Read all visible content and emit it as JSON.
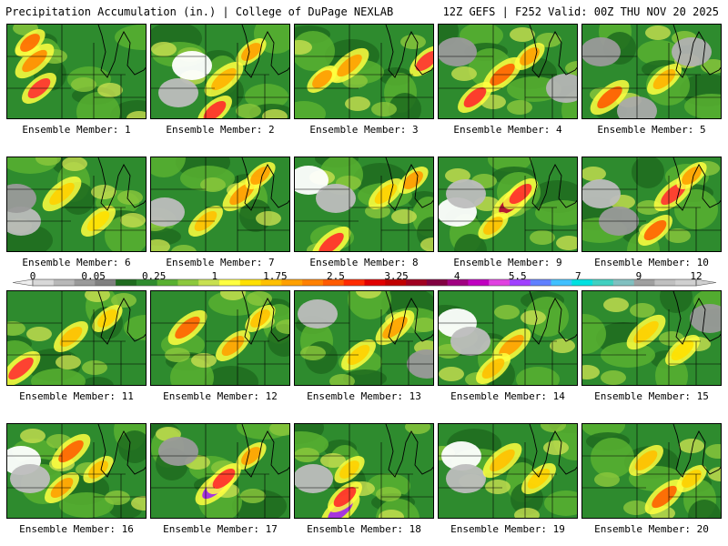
{
  "header": {
    "left": "Precipitation Accumulation (in.) | College of DuPage NEXLAB",
    "right": "12Z GEFS | F252 Valid: 00Z THU NOV 20 2025"
  },
  "label_prefix": "Ensemble Member:",
  "members": [
    {
      "id": "1",
      "heavy": [
        [
          30,
          40,
          "#ff8c00"
        ],
        [
          35,
          70,
          "#ff3030"
        ],
        [
          25,
          20,
          "#ff6a00"
        ]
      ],
      "grey": []
    },
    {
      "id": "2",
      "heavy": [
        [
          80,
          60,
          "#ffb300"
        ],
        [
          70,
          95,
          "#ff2a2a"
        ],
        [
          110,
          30,
          "#ffa000"
        ]
      ],
      "grey": [
        [
          45,
          45,
          "#ffffff"
        ],
        [
          30,
          75,
          "#bdbdbd"
        ]
      ]
    },
    {
      "id": "3",
      "heavy": [
        [
          60,
          45,
          "#ffa000"
        ],
        [
          145,
          40,
          "#ff3030"
        ],
        [
          30,
          60,
          "#ff9a00"
        ]
      ],
      "grey": []
    },
    {
      "id": "4",
      "heavy": [
        [
          70,
          55,
          "#ff6000"
        ],
        [
          40,
          80,
          "#ff2a2a"
        ],
        [
          100,
          35,
          "#ffa000"
        ]
      ],
      "grey": [
        [
          20,
          30,
          "#9a9a9a"
        ],
        [
          140,
          70,
          "#b5b5b5"
        ]
      ]
    },
    {
      "id": "5",
      "heavy": [
        [
          30,
          80,
          "#ff5a00"
        ],
        [
          90,
          60,
          "#ffb300"
        ]
      ],
      "grey": [
        [
          20,
          30,
          "#9a9a9a"
        ],
        [
          120,
          30,
          "#b0b0b0"
        ],
        [
          60,
          95,
          "#aaaaaa"
        ]
      ]
    },
    {
      "id": "6",
      "heavy": [
        [
          60,
          40,
          "#ffd000"
        ],
        [
          100,
          70,
          "#ffe000"
        ]
      ],
      "grey": [
        [
          15,
          70,
          "#bcbcbc"
        ],
        [
          10,
          45,
          "#9a9a9a"
        ]
      ]
    },
    {
      "id": "7",
      "heavy": [
        [
          100,
          40,
          "#ff9a00"
        ],
        [
          60,
          70,
          "#ffc000"
        ],
        [
          120,
          20,
          "#ffa000"
        ]
      ],
      "grey": [
        [
          15,
          60,
          "#bdbdbd"
        ]
      ]
    },
    {
      "id": "8",
      "heavy": [
        [
          40,
          95,
          "#ff2a2a"
        ],
        [
          100,
          40,
          "#ffd000"
        ],
        [
          130,
          25,
          "#ff9a00"
        ]
      ],
      "grey": [
        [
          15,
          25,
          "#ffffff"
        ],
        [
          45,
          45,
          "#bdbdbd"
        ]
      ]
    },
    {
      "id": "9",
      "heavy": [
        [
          80,
          50,
          "#b00030"
        ],
        [
          90,
          40,
          "#ff2a2a"
        ],
        [
          60,
          75,
          "#ffc000"
        ]
      ],
      "grey": [
        [
          20,
          60,
          "#ffffff"
        ],
        [
          30,
          40,
          "#bdbdbd"
        ]
      ]
    },
    {
      "id": "10",
      "heavy": [
        [
          100,
          40,
          "#ff3030"
        ],
        [
          80,
          80,
          "#ff6000"
        ],
        [
          120,
          20,
          "#ffa000"
        ]
      ],
      "grey": [
        [
          20,
          40,
          "#bdbdbd"
        ],
        [
          40,
          70,
          "#9a9a9a"
        ]
      ]
    },
    {
      "id": "11",
      "heavy": [
        [
          15,
          85,
          "#ff3030"
        ],
        [
          70,
          50,
          "#ffc000"
        ],
        [
          110,
          30,
          "#ffd000"
        ]
      ],
      "grey": []
    },
    {
      "id": "12",
      "heavy": [
        [
          40,
          40,
          "#ff6000"
        ],
        [
          90,
          60,
          "#ffa000"
        ],
        [
          120,
          30,
          "#ffc000"
        ]
      ],
      "grey": []
    },
    {
      "id": "13",
      "heavy": [
        [
          110,
          40,
          "#ffa000"
        ],
        [
          70,
          70,
          "#ffd000"
        ]
      ],
      "grey": [
        [
          25,
          25,
          "#bdbdbd"
        ],
        [
          145,
          80,
          "#9a9a9a"
        ]
      ]
    },
    {
      "id": "14",
      "heavy": [
        [
          80,
          60,
          "#ffa000"
        ],
        [
          60,
          85,
          "#ffc000"
        ]
      ],
      "grey": [
        [
          20,
          35,
          "#ffffff"
        ],
        [
          35,
          55,
          "#bdbdbd"
        ]
      ]
    },
    {
      "id": "15",
      "heavy": [
        [
          70,
          45,
          "#ffd000"
        ],
        [
          110,
          65,
          "#ffe000"
        ]
      ],
      "grey": [
        [
          140,
          30,
          "#9a9a9a"
        ]
      ]
    },
    {
      "id": "16",
      "heavy": [
        [
          70,
          30,
          "#ff6000"
        ],
        [
          60,
          70,
          "#ffa000"
        ],
        [
          100,
          50,
          "#ffc000"
        ]
      ],
      "grey": [
        [
          15,
          40,
          "#ffffff"
        ],
        [
          25,
          60,
          "#bdbdbd"
        ]
      ]
    },
    {
      "id": "17",
      "heavy": [
        [
          70,
          70,
          "#a020f0"
        ],
        [
          80,
          60,
          "#ff2a2a"
        ],
        [
          110,
          35,
          "#ffa000"
        ]
      ],
      "grey": [
        [
          30,
          30,
          "#9a9a9a"
        ]
      ]
    },
    {
      "id": "18",
      "heavy": [
        [
          50,
          95,
          "#a020f0"
        ],
        [
          55,
          80,
          "#ff2a2a"
        ],
        [
          60,
          50,
          "#ffd000"
        ]
      ],
      "grey": [
        [
          20,
          60,
          "#bdbdbd"
        ]
      ]
    },
    {
      "id": "19",
      "heavy": [
        [
          70,
          40,
          "#ffc000"
        ],
        [
          110,
          60,
          "#ffd000"
        ]
      ],
      "grey": [
        [
          25,
          35,
          "#ffffff"
        ],
        [
          30,
          60,
          "#bdbdbd"
        ]
      ]
    },
    {
      "id": "20",
      "heavy": [
        [
          90,
          80,
          "#ff6000"
        ],
        [
          70,
          40,
          "#ffc000"
        ],
        [
          120,
          60,
          "#ffd000"
        ]
      ],
      "grey": []
    }
  ],
  "legend": {
    "colors": [
      "#d8d8d8",
      "#b8b8b8",
      "#9a9a9a",
      "#808080",
      "#1e6b1e",
      "#2e8b2e",
      "#58b030",
      "#8cc83c",
      "#c8e050",
      "#ffff40",
      "#ffe000",
      "#ffc000",
      "#ffa000",
      "#ff8000",
      "#ff5a00",
      "#ff2a00",
      "#e00000",
      "#c00000",
      "#a00020",
      "#800040",
      "#a00080",
      "#c000c0",
      "#e040e0",
      "#a040ff",
      "#6080ff",
      "#40c0ff",
      "#00e0e0",
      "#40d0c0",
      "#80c0c0",
      "#a0a0a0",
      "#c0c0c0",
      "#d0d0d0"
    ],
    "ticks": [
      {
        "label": "0",
        "pos": 0
      },
      {
        "label": "0.05",
        "pos": 0.095
      },
      {
        "label": "0.25",
        "pos": 0.19
      },
      {
        "label": "1",
        "pos": 0.285
      },
      {
        "label": "1.75",
        "pos": 0.38
      },
      {
        "label": "2.5",
        "pos": 0.475
      },
      {
        "label": "3.25",
        "pos": 0.57
      },
      {
        "label": "4",
        "pos": 0.665
      },
      {
        "label": "5.5",
        "pos": 0.76
      },
      {
        "label": "7",
        "pos": 0.855
      },
      {
        "label": "9",
        "pos": 0.95
      },
      {
        "label": "12",
        "pos": 1.04
      }
    ]
  }
}
